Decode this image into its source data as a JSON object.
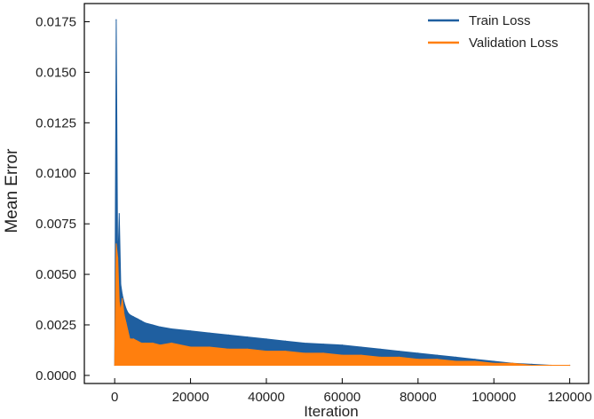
{
  "chart_data": {
    "type": "line",
    "xlabel": "Iteration",
    "ylabel": "Mean Error",
    "xlim": [
      -8000,
      125000
    ],
    "ylim": [
      -0.0004,
      0.0184
    ],
    "xticks": [
      0,
      20000,
      40000,
      60000,
      80000,
      100000,
      120000
    ],
    "yticks": [
      0.0,
      0.0025,
      0.005,
      0.0075,
      0.01,
      0.0125,
      0.015,
      0.0175
    ],
    "xtick_labels": [
      "0",
      "20000",
      "40000",
      "60000",
      "80000",
      "100000",
      "120000"
    ],
    "ytick_labels": [
      "0.0000",
      "0.0025",
      "0.0050",
      "0.0075",
      "0.0100",
      "0.0125",
      "0.0150",
      "0.0175"
    ],
    "grid": false,
    "legend_position": "top-right",
    "series": [
      {
        "name": "Train Loss",
        "color": "#1f5fa0",
        "x": [
          0,
          400,
          800,
          1200,
          1600,
          2000,
          2500,
          3000,
          3500,
          4000,
          5000,
          6000,
          7000,
          8000,
          10000,
          12000,
          15000,
          20000,
          25000,
          30000,
          35000,
          40000,
          45000,
          50000,
          55000,
          60000,
          65000,
          70000,
          75000,
          80000,
          85000,
          90000,
          95000,
          100000,
          105000,
          110000,
          115000,
          120000
        ],
        "values": [
          0.0005,
          0.0176,
          0.0053,
          0.008,
          0.0045,
          0.004,
          0.0036,
          0.0033,
          0.0031,
          0.003,
          0.0029,
          0.0028,
          0.0027,
          0.0026,
          0.0025,
          0.0024,
          0.0023,
          0.0022,
          0.0021,
          0.002,
          0.0019,
          0.0018,
          0.0017,
          0.0016,
          0.00155,
          0.0015,
          0.0014,
          0.0013,
          0.0012,
          0.0011,
          0.001,
          0.0009,
          0.0008,
          0.0007,
          0.0006,
          0.00055,
          0.0005,
          0.0005
        ],
        "min_values": [
          0.0005,
          0.0005,
          0.0005,
          0.0005,
          0.0005,
          0.0005,
          0.0005,
          0.0005,
          0.0005,
          0.0005,
          0.0005,
          0.0005,
          0.0005,
          0.0005,
          0.0005,
          0.0005,
          0.0005,
          0.0005,
          0.0005,
          0.0005,
          0.0005,
          0.0005,
          0.0005,
          0.0005,
          0.0005,
          0.0005,
          0.0005,
          0.0005,
          0.0005,
          0.0005,
          0.0005,
          0.0005,
          0.0005,
          0.0005,
          0.0005,
          0.0005,
          0.0005,
          0.0005
        ]
      },
      {
        "name": "Validation Loss",
        "color": "#ff7f0e",
        "x": [
          0,
          400,
          800,
          1200,
          1600,
          2000,
          2500,
          3000,
          3500,
          4000,
          5000,
          6000,
          7000,
          8000,
          10000,
          12000,
          15000,
          20000,
          25000,
          30000,
          35000,
          40000,
          45000,
          50000,
          55000,
          60000,
          65000,
          70000,
          75000,
          80000,
          85000,
          90000,
          95000,
          100000,
          105000,
          110000,
          115000,
          120000
        ],
        "values": [
          0.0005,
          0.0065,
          0.0058,
          0.0036,
          0.0032,
          0.0038,
          0.003,
          0.0026,
          0.0022,
          0.0018,
          0.0018,
          0.0017,
          0.0016,
          0.0016,
          0.0016,
          0.0015,
          0.0016,
          0.0014,
          0.0014,
          0.0013,
          0.0013,
          0.0012,
          0.0012,
          0.0011,
          0.0011,
          0.001,
          0.001,
          0.0009,
          0.0009,
          0.0008,
          0.0008,
          0.0007,
          0.0007,
          0.0006,
          0.0006,
          0.0005,
          0.0005,
          0.0005
        ],
        "min_values": [
          0.0005,
          0.0005,
          0.0005,
          0.0005,
          0.0005,
          0.0005,
          0.0005,
          0.0005,
          0.0005,
          0.0005,
          0.0005,
          0.0005,
          0.0005,
          0.0005,
          0.0005,
          0.0005,
          0.0005,
          0.0005,
          0.0005,
          0.0005,
          0.0005,
          0.0005,
          0.0005,
          0.0005,
          0.0005,
          0.0005,
          0.0005,
          0.0005,
          0.0005,
          0.0005,
          0.0005,
          0.0005,
          0.0005,
          0.0005,
          0.0005,
          0.0005,
          0.0005,
          0.0005
        ]
      }
    ]
  }
}
